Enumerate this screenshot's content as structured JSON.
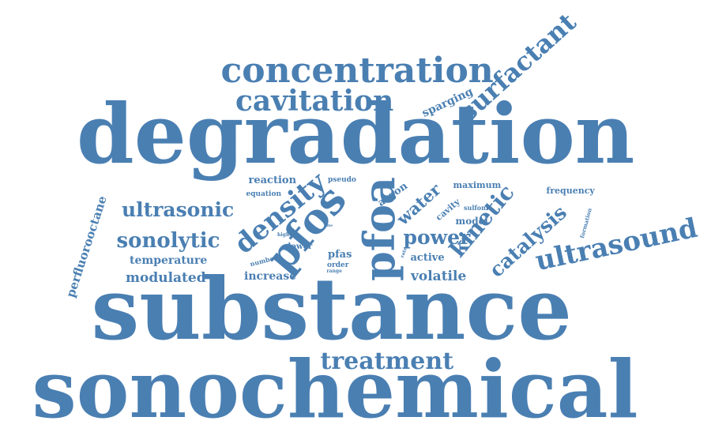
{
  "theme": {
    "word_color": "#4a7fb2",
    "background": "#ffffff"
  },
  "words": [
    {
      "key": "degradation",
      "text": "degradation",
      "weight": 100
    },
    {
      "key": "substance",
      "text": "substance",
      "weight": 96
    },
    {
      "key": "sonochemical",
      "text": "sonochemical",
      "weight": 92
    },
    {
      "key": "concentration",
      "text": "concentration",
      "weight": 40
    },
    {
      "key": "cavitation",
      "text": "cavitation",
      "weight": 34
    },
    {
      "key": "surfactant",
      "text": "surfactant",
      "weight": 32
    },
    {
      "key": "ultrasound",
      "text": "ultrasound",
      "weight": 34
    },
    {
      "key": "treatment",
      "text": "treatment",
      "weight": 30
    },
    {
      "key": "pfoa",
      "text": "pfoa",
      "weight": 44
    },
    {
      "key": "pfos",
      "text": "pfos",
      "weight": 40
    },
    {
      "key": "density",
      "text": "density",
      "weight": 30
    },
    {
      "key": "ultrasonic",
      "text": "ultrasonic",
      "weight": 24
    },
    {
      "key": "sonolytic",
      "text": "sonolytic",
      "weight": 24
    },
    {
      "key": "kinetic",
      "text": "kinetic",
      "weight": 24
    },
    {
      "key": "catalysis",
      "text": "catalysis",
      "weight": 24
    },
    {
      "key": "power",
      "text": "power",
      "weight": 24
    },
    {
      "key": "water",
      "text": "water",
      "weight": 20
    },
    {
      "key": "modulated",
      "text": "modulated",
      "weight": 16
    },
    {
      "key": "volatile",
      "text": "volatile",
      "weight": 16
    },
    {
      "key": "perfluorooctane",
      "text": "perfluorooctane",
      "weight": 14
    },
    {
      "key": "temperature",
      "text": "temperature",
      "weight": 13
    },
    {
      "key": "increase",
      "text": "increase",
      "weight": 13
    },
    {
      "key": "argon",
      "text": "argon",
      "weight": 13
    },
    {
      "key": "sparging",
      "text": "sparging",
      "weight": 13
    },
    {
      "key": "reaction",
      "text": "reaction",
      "weight": 12
    },
    {
      "key": "cavity",
      "text": "cavity",
      "weight": 11
    },
    {
      "key": "model",
      "text": "model",
      "weight": 11
    },
    {
      "key": "pfas",
      "text": "pfas",
      "weight": 11
    },
    {
      "key": "active",
      "text": "active",
      "weight": 11
    },
    {
      "key": "frequency",
      "text": "frequency",
      "weight": 10
    },
    {
      "key": "maximum",
      "text": "maximum",
      "weight": 9
    },
    {
      "key": "pseudo",
      "text": "pseudo",
      "weight": 8
    },
    {
      "key": "equation",
      "text": "equation",
      "weight": 8
    },
    {
      "key": "lower",
      "text": "lower",
      "weight": 8
    },
    {
      "key": "sulfonic",
      "text": "sulfonic",
      "weight": 7
    },
    {
      "key": "order",
      "text": "order",
      "weight": 7
    },
    {
      "key": "formation",
      "text": "formation",
      "weight": 7
    },
    {
      "key": "number",
      "text": "number",
      "weight": 6
    },
    {
      "key": "higher",
      "text": "higher",
      "weight": 6
    },
    {
      "key": "range",
      "text": "range",
      "weight": 5
    },
    {
      "key": "rate",
      "text": "rate",
      "weight": 5
    },
    {
      "key": "site",
      "text": "site",
      "weight": 4
    }
  ]
}
